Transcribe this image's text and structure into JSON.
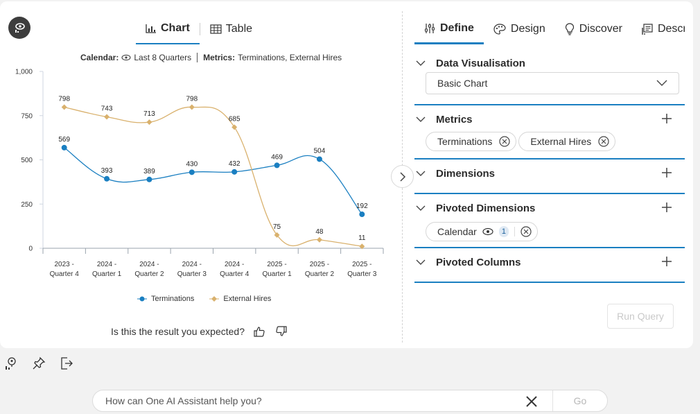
{
  "tabs": {
    "chart_label": "Chart",
    "table_label": "Table"
  },
  "filters": {
    "calendar_label": "Calendar:",
    "calendar_value": "Last 8 Quarters",
    "metrics_label": "Metrics:",
    "metrics_value": "Terminations, External Hires"
  },
  "chart_data": {
    "type": "line",
    "categories": [
      [
        "2023 -",
        "Quarter 4"
      ],
      [
        "2024 -",
        "Quarter 1"
      ],
      [
        "2024 -",
        "Quarter 2"
      ],
      [
        "2024 -",
        "Quarter 3"
      ],
      [
        "2024 -",
        "Quarter 4"
      ],
      [
        "2025 -",
        "Quarter 1"
      ],
      [
        "2025 -",
        "Quarter 2"
      ],
      [
        "2025 -",
        "Quarter 3"
      ]
    ],
    "series": [
      {
        "name": "Terminations",
        "color": "#1a7fc1",
        "marker": "circle",
        "values": [
          569,
          393,
          389,
          430,
          432,
          469,
          504,
          192
        ]
      },
      {
        "name": "External Hires",
        "color": "#d9b16d",
        "marker": "diamond",
        "values": [
          798,
          743,
          713,
          798,
          685,
          75,
          48,
          11
        ]
      }
    ],
    "yticks": [
      "0",
      "250",
      "500",
      "750",
      "1,000"
    ],
    "ylim": [
      0,
      1000
    ],
    "legend": "bottom"
  },
  "feedback": {
    "question": "Is this the result you expected?"
  },
  "right_tabs": [
    {
      "label": "Define",
      "icon": "sliders-icon"
    },
    {
      "label": "Design",
      "icon": "palette-icon"
    },
    {
      "label": "Discover",
      "icon": "lightbulb-icon"
    },
    {
      "label": "Descri",
      "icon": "description-icon"
    }
  ],
  "sections": {
    "data_vis": {
      "title": "Data Visualisation",
      "selected": "Basic Chart"
    },
    "metrics": {
      "title": "Metrics",
      "chips": [
        "Terminations",
        "External Hires"
      ]
    },
    "dimensions": {
      "title": "Dimensions"
    },
    "pivoted_dimensions": {
      "title": "Pivoted Dimensions",
      "chip": "Calendar",
      "badge": "1"
    },
    "pivoted_columns": {
      "title": "Pivoted Columns"
    }
  },
  "run_query_label": "Run Query",
  "ask": {
    "placeholder": "How can One AI Assistant help you?",
    "go_label": "Go"
  }
}
